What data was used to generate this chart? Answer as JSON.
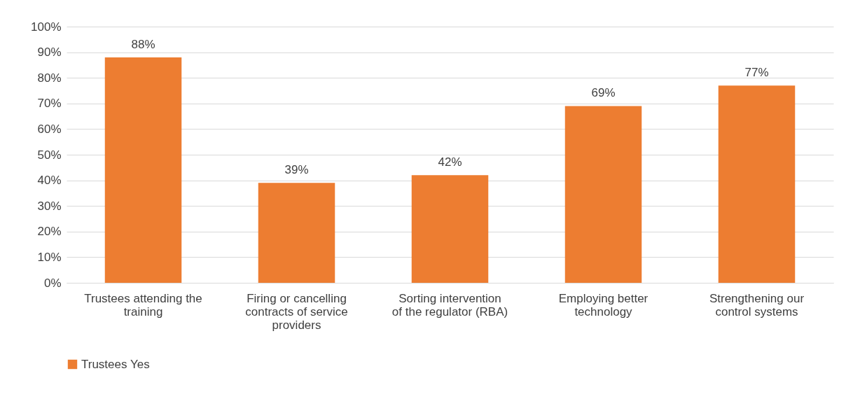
{
  "chart_data": {
    "type": "bar",
    "categories": [
      "Trustees attending the training",
      "Firing or cancelling contracts of service providers",
      "Sorting  intervention of the regulator (RBA)",
      "Employing better technology",
      "Strengthening our control systems"
    ],
    "series": [
      {
        "name": "Trustees Yes",
        "color": "#ed7d31",
        "values": [
          88,
          39,
          42,
          69,
          77
        ],
        "value_labels": [
          "88%",
          "39%",
          "42%",
          "69%",
          "77%"
        ]
      }
    ],
    "ylim": [
      0,
      100
    ],
    "yticks": [
      {
        "value": 0,
        "label": "0%"
      },
      {
        "value": 10,
        "label": "10%"
      },
      {
        "value": 20,
        "label": "20%"
      },
      {
        "value": 30,
        "label": "30%"
      },
      {
        "value": 40,
        "label": "40%"
      },
      {
        "value": 50,
        "label": "50%"
      },
      {
        "value": 60,
        "label": "60%"
      },
      {
        "value": 70,
        "label": "70%"
      },
      {
        "value": 80,
        "label": "80%"
      },
      {
        "value": 90,
        "label": "90%"
      },
      {
        "value": 100,
        "label": "100%"
      }
    ],
    "grid": "y",
    "legend": "bottom"
  }
}
